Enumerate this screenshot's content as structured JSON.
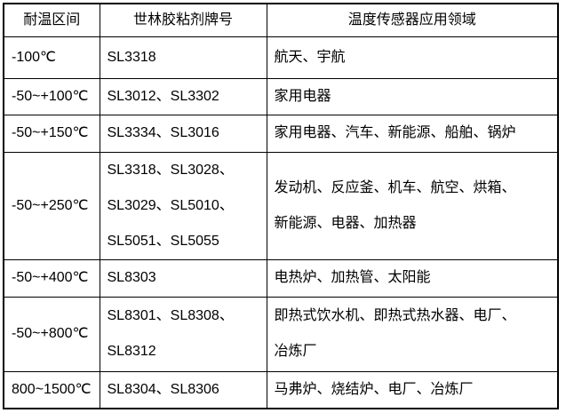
{
  "table": {
    "headers": [
      "耐温区间",
      "世林胶粘剂牌号",
      "温度传感器应用领域"
    ],
    "rows": [
      {
        "range": "-100℃",
        "models": "SL3318",
        "applications": "航天、宇航"
      },
      {
        "range": "-50~+100℃",
        "models": "SL3012、SL3302",
        "applications": "家用电器"
      },
      {
        "range": "-50~+150℃",
        "models": "SL3334、SL3016",
        "applications": "家用电器、汽车、新能源、船舶、锅炉"
      },
      {
        "range": "-50~+250℃",
        "models": "SL3318、SL3028、\nSL3029、SL5010、\nSL5051、SL5055",
        "applications": "发动机、反应釜、机车、航空、烘箱、\n新能源、电器、加热器"
      },
      {
        "range": "-50~+400℃",
        "models": "SL8303",
        "applications": "电热炉、加热管、太阳能"
      },
      {
        "range": "-50~+800℃",
        "models": "SL8301、SL8308、\nSL8312",
        "applications": "即热式饮水机、即热式热水器、电厂、\n冶炼厂"
      },
      {
        "range": "800~1500℃",
        "models": "SL8304、SL8306",
        "applications": "马弗炉、烧结炉、电厂、冶炼厂"
      }
    ],
    "colors": {
      "border": "#000000",
      "text": "#000000",
      "background": "#ffffff"
    }
  }
}
